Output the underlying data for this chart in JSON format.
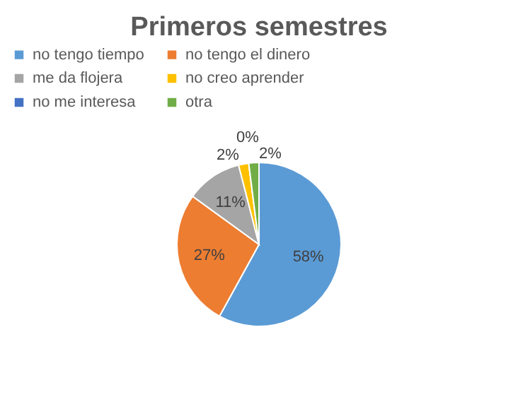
{
  "chart_data": {
    "type": "pie",
    "title": "Primeros semestres",
    "categories": [
      "no tengo tiempo",
      "no tengo el dinero",
      "me da flojera",
      "no creo aprender",
      "no me interesa",
      "otra"
    ],
    "values": [
      58,
      27,
      11,
      2,
      0,
      2
    ],
    "colors": [
      "#5b9bd5",
      "#ed7d31",
      "#a5a5a5",
      "#ffc000",
      "#4472c4",
      "#70ad47"
    ],
    "value_labels": [
      "58%",
      "27%",
      "11%",
      "2%",
      "0%",
      "2%"
    ],
    "legend": "top"
  }
}
